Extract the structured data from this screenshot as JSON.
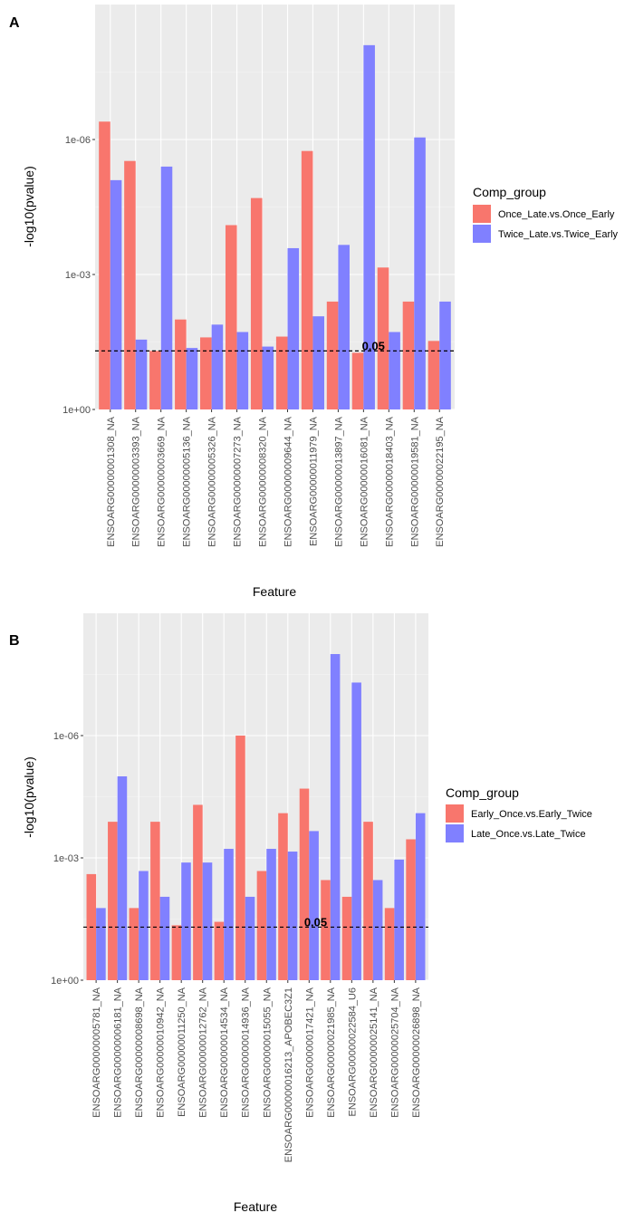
{
  "chart_data": [
    {
      "panel_label": "A",
      "type": "bar",
      "xlabel": "Feature",
      "ylabel": "-log10(pvalue)",
      "yscale": "log10 (reversed)",
      "ytick_labels": [
        "1e-06",
        "1e-03",
        "1e+00"
      ],
      "threshold": {
        "value": 0.05,
        "label": "0.05"
      },
      "legend": {
        "title": "Comp_group",
        "position": "right"
      },
      "categories": [
        "ENSOARG00000001308_NA",
        "ENSOARG00000003393_NA",
        "ENSOARG00000003669_NA",
        "ENSOARG00000005136_NA",
        "ENSOARG00000005326_NA",
        "ENSOARG00000007273_NA",
        "ENSOARG00000008320_NA",
        "ENSOARG00000009644_NA",
        "ENSOARG00000011979_NA",
        "ENSOARG00000013897_NA",
        "ENSOARG00000016081_NA",
        "ENSOARG00000018403_NA",
        "ENSOARG00000019581_NA",
        "ENSOARG00000022195_NA"
      ],
      "series": [
        {
          "name": "Once_Late.vs.Once_Early",
          "color": "#F8766D",
          "values": [
            4e-07,
            3e-06,
            0.05,
            0.01,
            0.025,
            8e-05,
            2e-05,
            0.024,
            1.8e-06,
            0.004,
            0.055,
            0.0007,
            0.004,
            0.03
          ]
        },
        {
          "name": "Twice_Late.vs.Twice_Early",
          "color": "#8080FF",
          "values": [
            8e-06,
            0.028,
            4e-06,
            0.043,
            0.013,
            0.019,
            0.04,
            0.00026,
            0.0085,
            0.00022,
            8e-09,
            0.019,
            9e-07,
            0.004
          ]
        }
      ]
    },
    {
      "panel_label": "B",
      "type": "bar",
      "xlabel": "Feature",
      "ylabel": "-log10(pvalue)",
      "yscale": "log10 (reversed)",
      "ytick_labels": [
        "1e-06",
        "1e-03",
        "1e+00"
      ],
      "threshold": {
        "value": 0.05,
        "label": "0.05"
      },
      "legend": {
        "title": "Comp_group",
        "position": "right"
      },
      "categories": [
        "ENSOARG00000005781_NA",
        "ENSOARG00000006181_NA",
        "ENSOARG00000008698_NA",
        "ENSOARG00000010942_NA",
        "ENSOARG00000011250_NA",
        "ENSOARG00000012762_NA",
        "ENSOARG00000014534_NA",
        "ENSOARG00000014936_NA",
        "ENSOARG00000015055_NA",
        "ENSOARG00000016213_APOBEC3Z1",
        "ENSOARG00000017421_NA",
        "ENSOARG00000021985_NA",
        "ENSOARG00000022584_U6",
        "ENSOARG00000025141_NA",
        "ENSOARG00000025704_NA",
        "ENSOARG00000026898_NA"
      ],
      "series": [
        {
          "name": "Early_Once.vs.Early_Twice",
          "color": "#F8766D",
          "values": [
            0.0025,
            0.00013,
            0.017,
            0.00013,
            0.045,
            5e-05,
            0.037,
            1e-06,
            0.0021,
            8e-05,
            2e-05,
            0.0035,
            0.009,
            0.00013,
            0.017,
            0.00035
          ]
        },
        {
          "name": "Late_Once.vs.Late_Twice",
          "color": "#8080FF",
          "values": [
            0.017,
            1e-05,
            0.0021,
            0.009,
            0.0013,
            0.0013,
            0.0006,
            0.009,
            0.0006,
            0.0007,
            0.00022,
            1e-08,
            5e-08,
            0.0035,
            0.0011,
            8e-05
          ]
        }
      ]
    }
  ]
}
